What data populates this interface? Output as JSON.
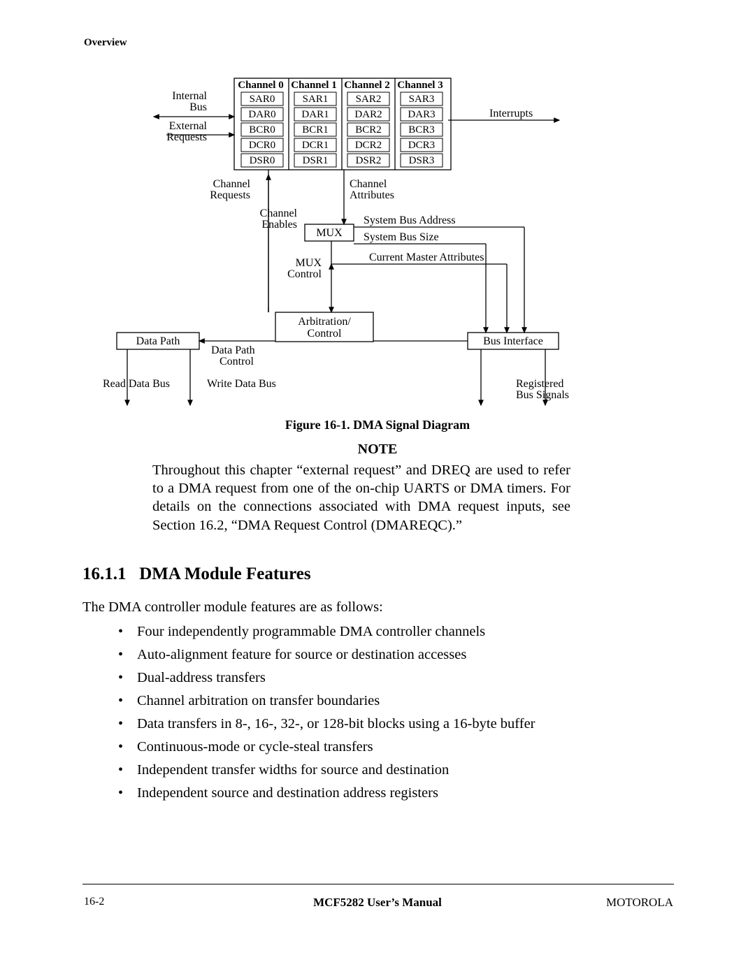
{
  "header": "Overview",
  "diagram": {
    "channels": [
      {
        "title": "Channel 0",
        "regs": [
          "SAR0",
          "DAR0",
          "BCR0",
          "DCR0",
          "DSR0"
        ]
      },
      {
        "title": "Channel 1",
        "regs": [
          "SAR1",
          "DAR1",
          "BCR1",
          "DCR1",
          "DSR1"
        ]
      },
      {
        "title": "Channel 2",
        "regs": [
          "SAR2",
          "DAR2",
          "BCR2",
          "DCR2",
          "DSR2"
        ]
      },
      {
        "title": "Channel 3",
        "regs": [
          "SAR3",
          "DAR3",
          "BCR3",
          "DCR3",
          "DSR3"
        ]
      }
    ],
    "labels": {
      "internalBus": "Internal\nBus",
      "externalRequests": "External\nRequests",
      "interrupts": "Interrupts",
      "channelRequests": "Channel\nRequests",
      "channelEnables": "Channel\nEnables",
      "channelAttributes": "Channel\nAttributes",
      "mux": "MUX",
      "muxControl": "MUX\nControl",
      "sysBusAddr": "System Bus Address",
      "sysBusSize": "System Bus Size",
      "curMasterAttr": "Current Master Attributes",
      "arbitration": "Arbitration/\nControl",
      "dataPath": "Data Path",
      "dataPathControl": "Data Path\nControl",
      "busInterface": "Bus Interface",
      "readDataBus": "Read Data Bus",
      "writeDataBus": "Write Data Bus",
      "registeredBusSignals": "Registered\nBus Signals"
    },
    "style": {
      "font_size_header": 16,
      "font_size_label": 16,
      "stroke_color": "#000000",
      "fill_color": "#ffffff"
    }
  },
  "figureCaption": "Figure 16-1. DMA Signal Diagram",
  "noteHeading": "NOTE",
  "noteBody": "Throughout this chapter “external request” and DREQ are used to refer to a DMA request from one of the on-chip UARTS or DMA timers. For details on the connections associated with DMA request inputs, see Section 16.2, “DMA Request Control (DMAREQC).”",
  "sectionNumber": "16.1.1",
  "sectionTitle": "DMA Module Features",
  "sectionIntro": "The DMA controller module features are as follows:",
  "features": [
    "Four independently programmable DMA controller channels",
    "Auto-alignment feature for source or destination accesses",
    "Dual-address transfers",
    "Channel arbitration on transfer boundaries",
    "Data transfers in 8-, 16-, 32-, or 128-bit blocks using a 16-byte buffer",
    "Continuous-mode or cycle-steal transfers",
    "Independent transfer widths for source and destination",
    "Independent source and destination address registers"
  ],
  "footer": {
    "left": "16-2",
    "center": "MCF5282 User’s Manual",
    "right": "MOTOROLA"
  }
}
